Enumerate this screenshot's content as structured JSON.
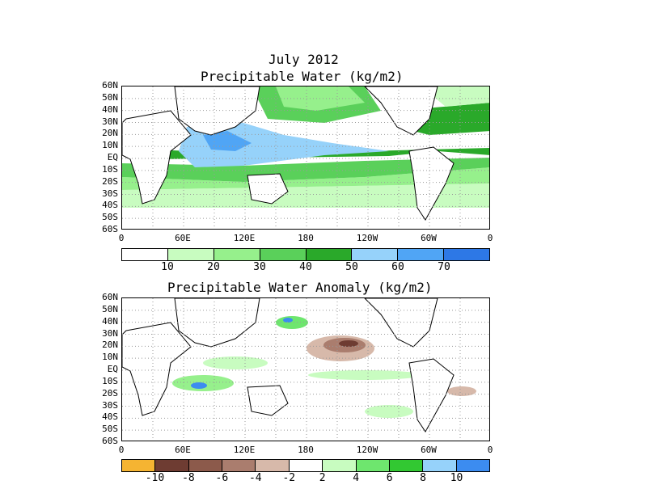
{
  "top": {
    "title_line1": "July 2012",
    "title_line2": "Precipitable Water (kg/m2)",
    "lat_labels": [
      "60N",
      "50N",
      "40N",
      "30N",
      "20N",
      "10N",
      "EQ",
      "10S",
      "20S",
      "30S",
      "40S",
      "50S",
      "60S"
    ],
    "lon_labels": [
      "0",
      "60E",
      "120E",
      "180",
      "120W",
      "60W",
      "0"
    ],
    "colorbar": {
      "colors": [
        "#ffffff",
        "#c8fcc0",
        "#96f08c",
        "#5ad05a",
        "#2aa92a",
        "#96d2fa",
        "#50a5f5",
        "#2d78e6"
      ],
      "labels": [
        "10",
        "20",
        "30",
        "40",
        "50",
        "60",
        "70"
      ]
    }
  },
  "bottom": {
    "title": "Precipitable Water Anomaly (kg/m2)",
    "lat_labels": [
      "60N",
      "50N",
      "40N",
      "30N",
      "20N",
      "10N",
      "EQ",
      "10S",
      "20S",
      "30S",
      "40S",
      "50S",
      "60S"
    ],
    "lon_labels": [
      "0",
      "60E",
      "120E",
      "180",
      "120W",
      "60W",
      "0"
    ],
    "colorbar": {
      "colors": [
        "#f5b432",
        "#6e3c32",
        "#8c5a4b",
        "#aa7d6e",
        "#d7b9aa",
        "#ffffff",
        "#c8fcc0",
        "#6ee66e",
        "#32c832",
        "#96d2fa",
        "#3c8cf0"
      ],
      "labels": [
        "-10",
        "-8",
        "-6",
        "-4",
        "-2",
        "2",
        "4",
        "6",
        "8",
        "10"
      ]
    }
  }
}
